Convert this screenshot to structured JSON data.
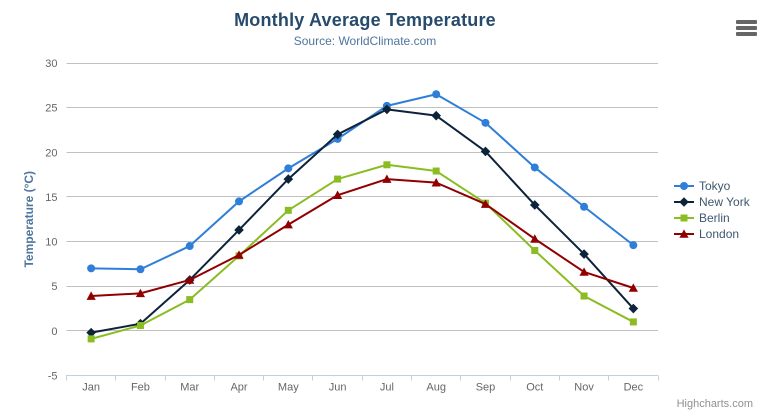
{
  "credit": "Highcharts.com",
  "menu": {
    "icon": "hamburger-icon"
  },
  "colors": {
    "title": "#274b6d",
    "subtitle": "#4d759e",
    "axis_labels": "#666666",
    "axis_line": "#c0d0e0",
    "gridline": "#c0c0c0",
    "legend_text": "#3e576f",
    "credit_text": "#909090"
  },
  "chart_data": {
    "type": "line",
    "title": "Monthly Average Temperature",
    "subtitle": "Source: WorldClimate.com",
    "xlabel": "",
    "ylabel": "Temperature (°C)",
    "categories": [
      "Jan",
      "Feb",
      "Mar",
      "Apr",
      "May",
      "Jun",
      "Jul",
      "Aug",
      "Sep",
      "Oct",
      "Nov",
      "Dec"
    ],
    "ylim": [
      -5,
      30
    ],
    "ytick_interval": 5,
    "yticks": [
      -5,
      0,
      5,
      10,
      15,
      20,
      25,
      30
    ],
    "grid": true,
    "legend_position": "right",
    "series": [
      {
        "name": "Tokyo",
        "color": "#2f7ed8",
        "marker": "circle",
        "values": [
          7.0,
          6.9,
          9.5,
          14.5,
          18.2,
          21.5,
          25.2,
          26.5,
          23.3,
          18.3,
          13.9,
          9.6
        ]
      },
      {
        "name": "New York",
        "color": "#0d233a",
        "marker": "diamond",
        "values": [
          -0.2,
          0.8,
          5.7,
          11.3,
          17.0,
          22.0,
          24.8,
          24.1,
          20.1,
          14.1,
          8.6,
          2.5
        ]
      },
      {
        "name": "Berlin",
        "color": "#8bbc21",
        "marker": "square",
        "values": [
          -0.9,
          0.6,
          3.5,
          8.4,
          13.5,
          17.0,
          18.6,
          17.9,
          14.3,
          9.0,
          3.9,
          1.0
        ]
      },
      {
        "name": "London",
        "color": "#910000",
        "marker": "triangle",
        "values": [
          3.9,
          4.2,
          5.7,
          8.5,
          11.9,
          15.2,
          17.0,
          16.6,
          14.2,
          10.3,
          6.6,
          4.8
        ]
      }
    ]
  }
}
